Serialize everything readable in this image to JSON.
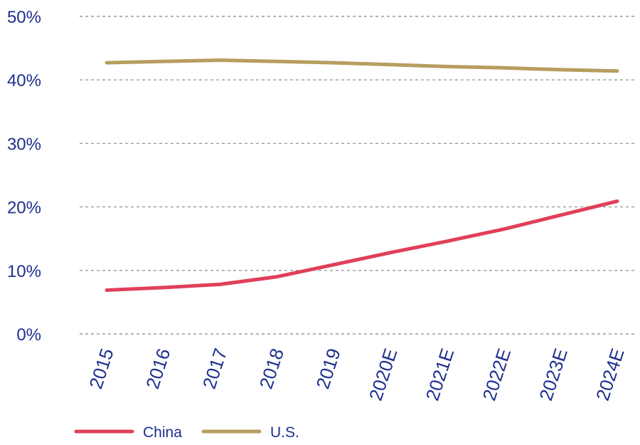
{
  "chart_data": {
    "type": "line",
    "categories": [
      "2015",
      "2016",
      "2017",
      "2018",
      "2019",
      "2020E",
      "2021E",
      "2022E",
      "2023E",
      "2024E"
    ],
    "series": [
      {
        "name": "China",
        "color": "#e0405a",
        "values": [
          6.9,
          7.3,
          7.8,
          9.0,
          10.9,
          12.8,
          14.6,
          16.5,
          18.7,
          20.9
        ]
      },
      {
        "name": "U.S.",
        "color": "#b79e5e",
        "values": [
          42.7,
          42.9,
          43.1,
          42.9,
          42.7,
          42.4,
          42.1,
          41.9,
          41.6,
          41.4
        ]
      }
    ],
    "ylim": [
      0,
      50
    ],
    "yticks": [
      0,
      10,
      20,
      30,
      40,
      50
    ],
    "ytick_labels": [
      "0%",
      "10%",
      "20%",
      "30%",
      "40%",
      "50%"
    ],
    "grid": true,
    "legend_position": "bottom-left"
  }
}
